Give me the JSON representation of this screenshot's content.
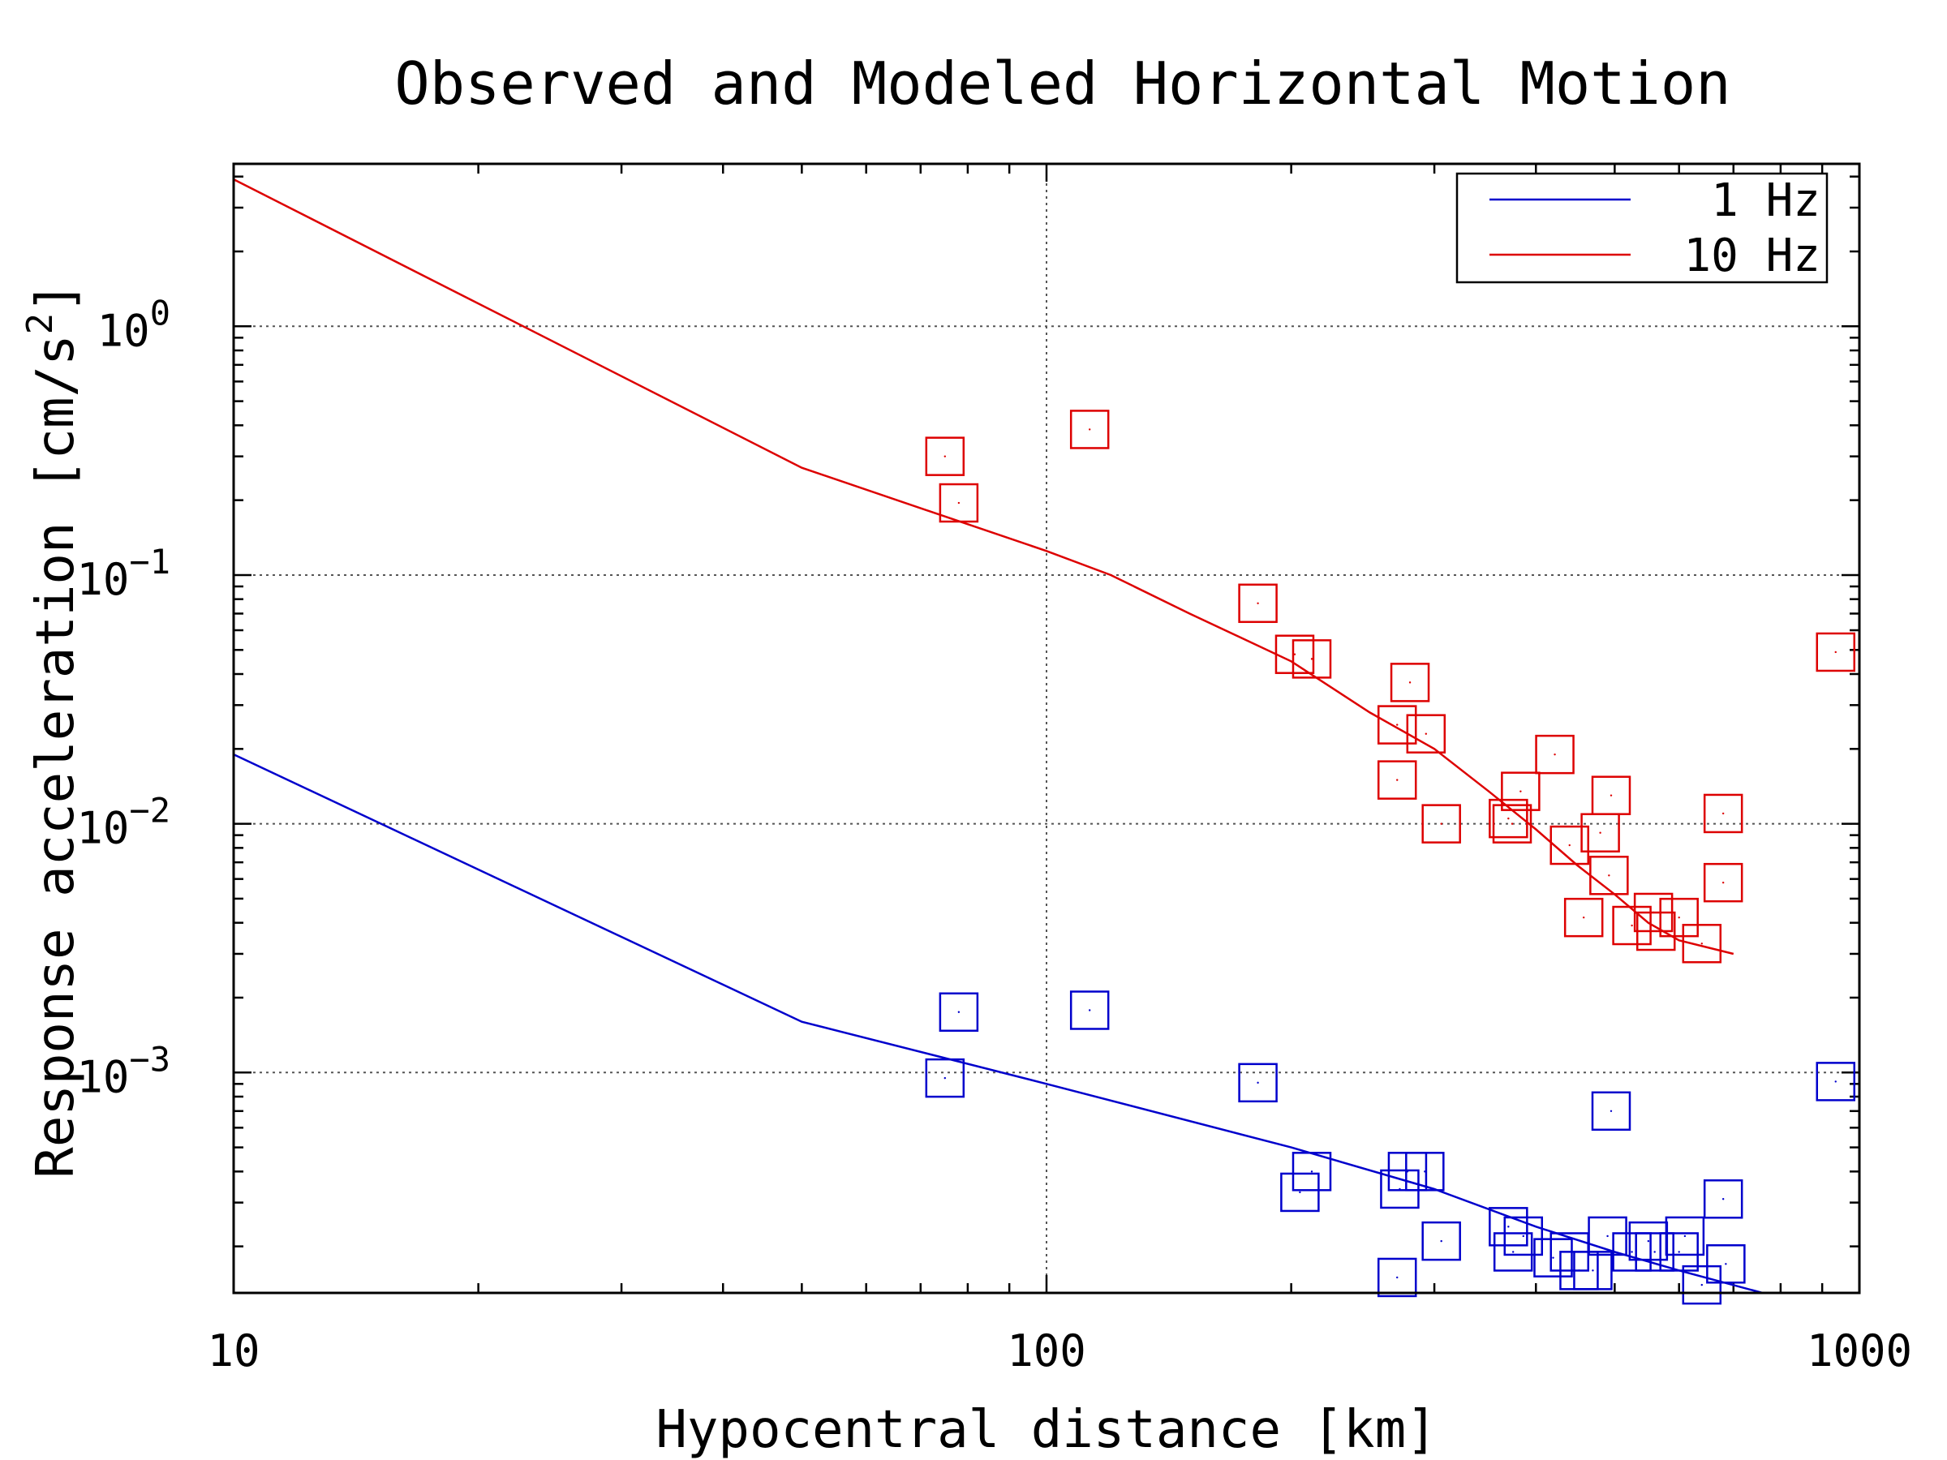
{
  "chart_data": {
    "type": "scatter",
    "title": "Observed and Modeled Horizontal Motion",
    "xlabel": "Hypocentral distance [km]",
    "ylabel": "Response acceleration [cm/s",
    "ylabel_sup": "2",
    "ylabel_end": "]",
    "x_scale": "log",
    "y_scale": "log",
    "xlim": [
      10,
      1000
    ],
    "ylim": [
      0.00013,
      4.5
    ],
    "x_ticks": [
      {
        "value": 10,
        "label": "10"
      },
      {
        "value": 100,
        "label": "100"
      },
      {
        "value": 1000,
        "label": "1000"
      }
    ],
    "y_ticks": [
      {
        "value": 1,
        "base": "10",
        "exp": "0"
      },
      {
        "value": 0.1,
        "base": "10",
        "exp": "−1"
      },
      {
        "value": 0.01,
        "base": "10",
        "exp": "−2"
      },
      {
        "value": 0.001,
        "base": "10",
        "exp": "−3"
      }
    ],
    "grid": "dotted-major",
    "legend_position": "top-right",
    "legend": [
      {
        "name": "1 Hz",
        "color": "#0000cc"
      },
      {
        "name": "10 Hz",
        "color": "#dd0000"
      }
    ],
    "series": [
      {
        "name": "1 Hz",
        "kind": "model-line",
        "color": "#0000cc",
        "points": [
          [
            10,
            0.019
          ],
          [
            50,
            0.0016
          ],
          [
            100,
            0.0009
          ],
          [
            200,
            0.0005
          ],
          [
            300,
            0.00034
          ],
          [
            400,
            0.00024
          ],
          [
            500,
            0.00019
          ],
          [
            600,
            0.00016
          ],
          [
            760,
            0.00013
          ]
        ]
      },
      {
        "name": "10 Hz",
        "kind": "model-line",
        "color": "#dd0000",
        "points": [
          [
            10,
            3.9
          ],
          [
            50,
            0.27
          ],
          [
            100,
            0.125
          ],
          [
            120,
            0.1
          ],
          [
            150,
            0.07
          ],
          [
            200,
            0.045
          ],
          [
            250,
            0.028
          ],
          [
            300,
            0.02
          ],
          [
            350,
            0.0135
          ],
          [
            400,
            0.0095
          ],
          [
            450,
            0.0068
          ],
          [
            500,
            0.0052
          ],
          [
            550,
            0.004
          ],
          [
            600,
            0.0034
          ],
          [
            700,
            0.003
          ]
        ]
      },
      {
        "name": "1 Hz",
        "kind": "observed",
        "marker": "square",
        "color": "#0000cc",
        "points": [
          [
            75,
            0.00095
          ],
          [
            78,
            0.00175
          ],
          [
            113,
            0.00178
          ],
          [
            182,
            0.00091
          ],
          [
            205,
            0.00033
          ],
          [
            212,
            0.0004
          ],
          [
            270,
            0.00015
          ],
          [
            272,
            0.00034
          ],
          [
            278,
            0.0004
          ],
          [
            292,
            0.0004
          ],
          [
            306,
            0.00021
          ],
          [
            370,
            0.00024
          ],
          [
            375,
            0.00019
          ],
          [
            386,
            0.00022
          ],
          [
            420,
            0.00018
          ],
          [
            440,
            0.00019
          ],
          [
            452,
            0.00016
          ],
          [
            470,
            0.00016
          ],
          [
            490,
            0.00022
          ],
          [
            495,
            0.0007
          ],
          [
            525,
            0.00019
          ],
          [
            550,
            0.00021
          ],
          [
            560,
            0.00019
          ],
          [
            600,
            0.00019
          ],
          [
            610,
            0.00022
          ],
          [
            640,
            0.00014
          ],
          [
            680,
            0.00031
          ],
          [
            685,
            0.00017
          ],
          [
            935,
            0.00092
          ]
        ]
      },
      {
        "name": "10 Hz",
        "kind": "observed",
        "marker": "square",
        "color": "#dd0000",
        "points": [
          [
            75,
            0.3
          ],
          [
            78,
            0.195
          ],
          [
            113,
            0.385
          ],
          [
            182,
            0.077
          ],
          [
            202,
            0.048
          ],
          [
            212,
            0.046
          ],
          [
            270,
            0.025
          ],
          [
            270,
            0.015
          ],
          [
            280,
            0.037
          ],
          [
            293,
            0.023
          ],
          [
            306,
            0.01
          ],
          [
            370,
            0.0105
          ],
          [
            374,
            0.01
          ],
          [
            383,
            0.0135
          ],
          [
            422,
            0.019
          ],
          [
            440,
            0.0082
          ],
          [
            458,
            0.0042
          ],
          [
            480,
            0.0092
          ],
          [
            492,
            0.0062
          ],
          [
            495,
            0.013
          ],
          [
            525,
            0.0039
          ],
          [
            558,
            0.0044
          ],
          [
            562,
            0.0037
          ],
          [
            600,
            0.0042
          ],
          [
            640,
            0.0033
          ],
          [
            680,
            0.011
          ],
          [
            680,
            0.0058
          ],
          [
            935,
            0.049
          ]
        ]
      }
    ]
  }
}
